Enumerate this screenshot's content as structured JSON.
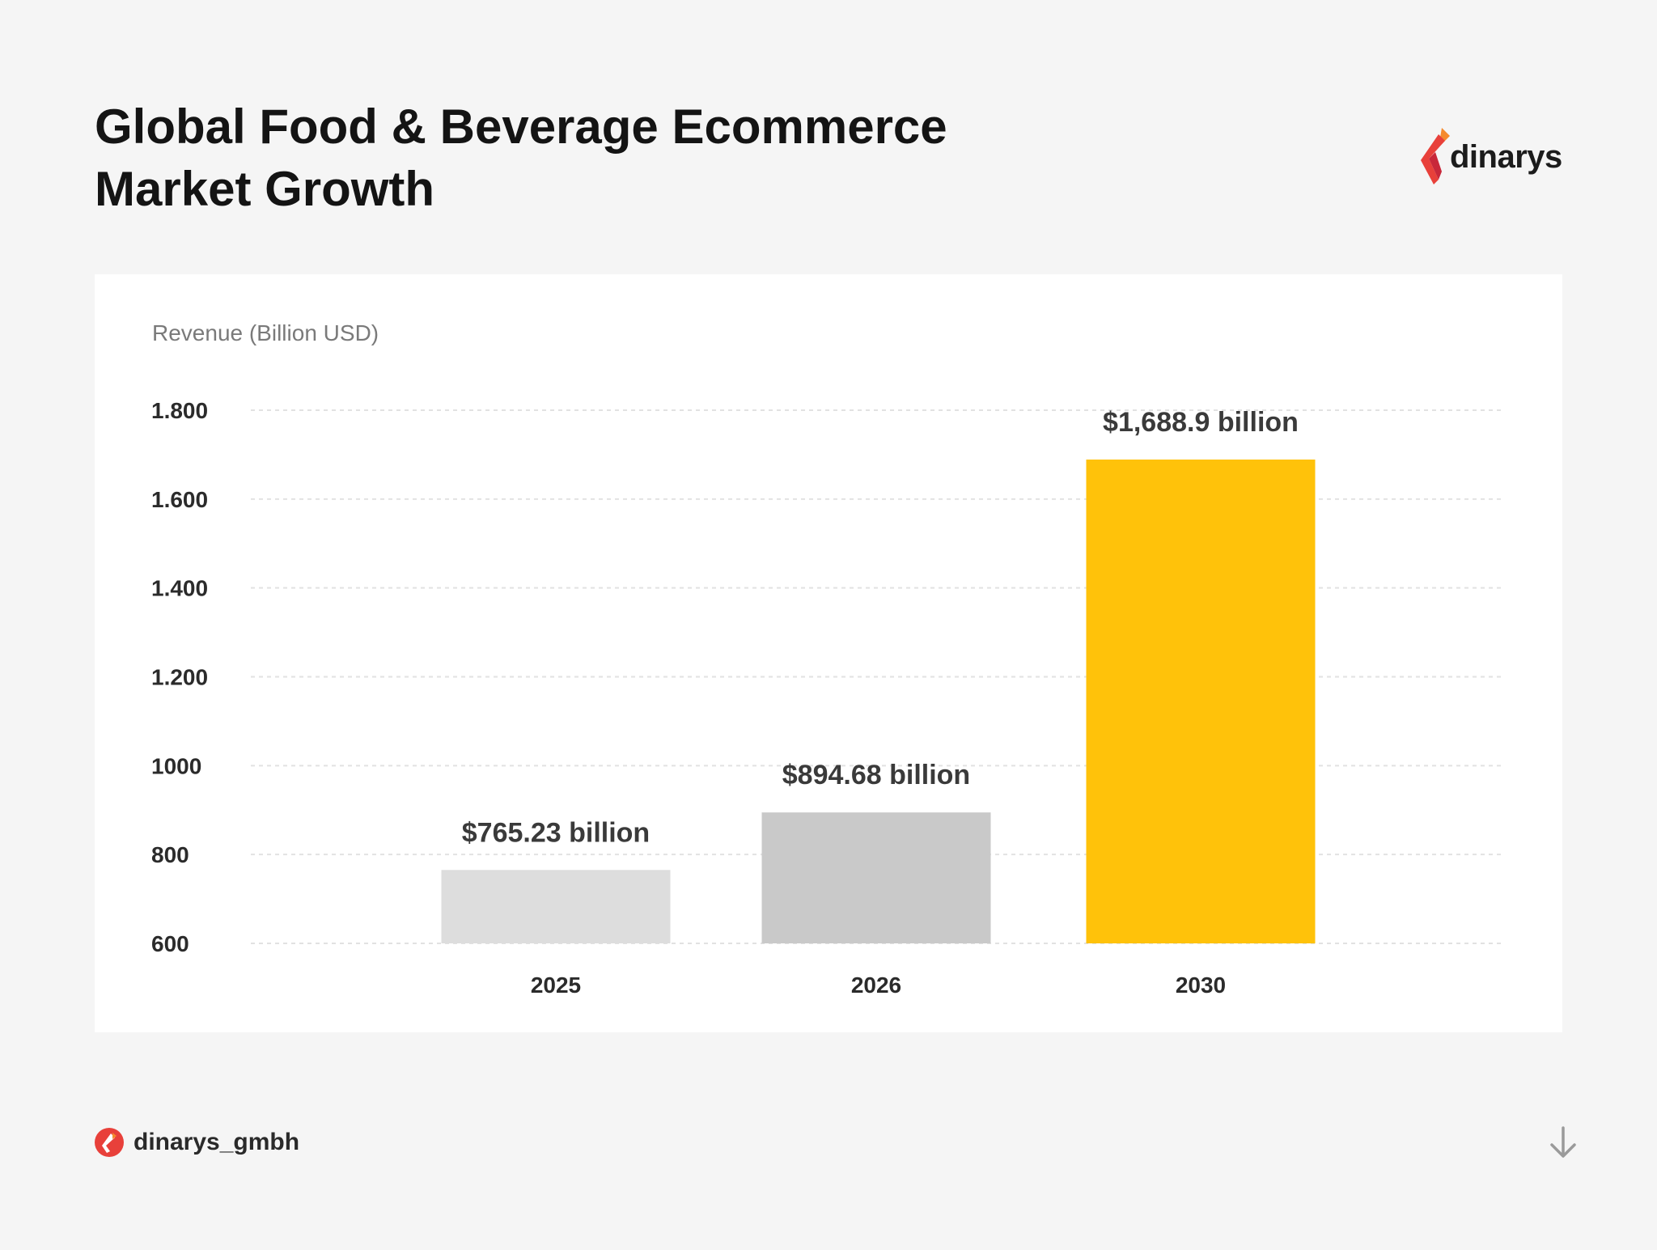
{
  "header": {
    "title_line1": "Global Food & Beverage Ecommerce",
    "title_line2": "Market Growth"
  },
  "brand": {
    "logo_text": "dinarys",
    "logo_icon": "dinarys-flame-logo-icon",
    "handle": "dinarys_gmbh",
    "colors": {
      "red": "#e8403a",
      "orange": "#f58a2c"
    }
  },
  "footer": {
    "arrow_icon": "arrow-down-icon"
  },
  "chart_data": {
    "type": "bar",
    "title": "Global Food & Beverage Ecommerce Market Growth",
    "ylabel": "Revenue (Billion USD)",
    "xlabel": "",
    "categories": [
      "2025",
      "2026",
      "2030"
    ],
    "values": [
      765.23,
      894.68,
      1688.9
    ],
    "data_labels": [
      "$765.23 billion",
      "$894.68 billion",
      "$1,688.9 billion"
    ],
    "bar_colors": [
      "#dddddd",
      "#c9c9c9",
      "#ffc20a"
    ],
    "ylim": [
      600,
      1800
    ],
    "yticks": [
      600,
      800,
      1000,
      1200,
      1400,
      1600,
      1800
    ],
    "ytick_labels": [
      "600",
      "800",
      "1000",
      "1.200",
      "1.400",
      "1.600",
      "1.800"
    ],
    "grid": true,
    "legend": "none"
  }
}
